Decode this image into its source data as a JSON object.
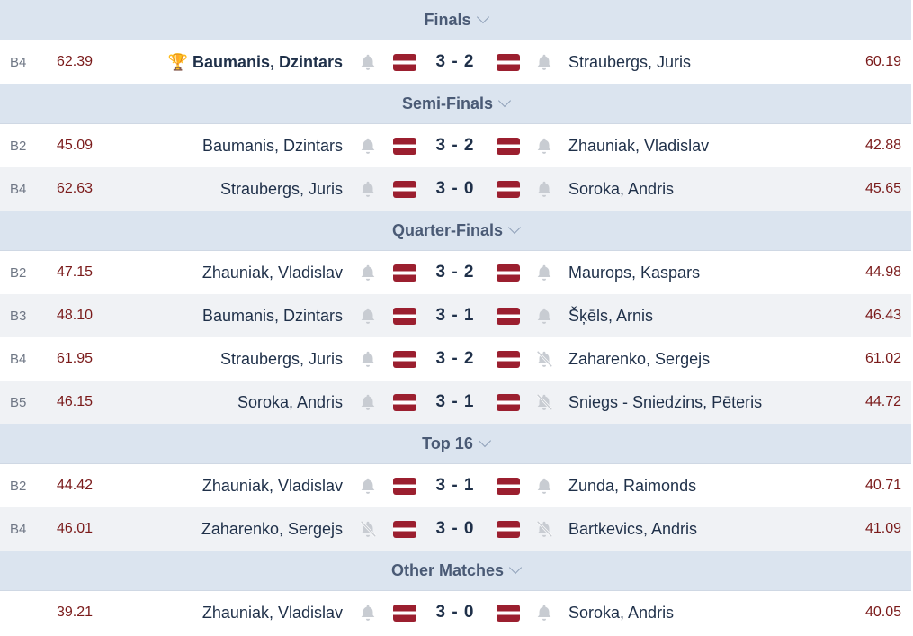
{
  "colors": {
    "header_bg": "#dbe4ef",
    "alt_row": "#f0f2f5",
    "average": "#7a1a1a",
    "flag_red": "#9b1f2f",
    "trophy": "#e0a800"
  },
  "sections": [
    {
      "title": "Finals",
      "matches": [
        {
          "round": "B4",
          "avg1": "62.39",
          "p1": "Baumanis, Dzintars",
          "winner": true,
          "score": "3 - 2",
          "p2": "Straubergs, Juris",
          "avg2": "60.19",
          "muted1": false,
          "muted2": false
        }
      ]
    },
    {
      "title": "Semi-Finals",
      "matches": [
        {
          "round": "B2",
          "avg1": "45.09",
          "p1": "Baumanis, Dzintars",
          "score": "3 - 2",
          "p2": "Zhauniak, Vladislav",
          "avg2": "42.88",
          "muted1": false,
          "muted2": false
        },
        {
          "round": "B4",
          "avg1": "62.63",
          "p1": "Straubergs, Juris",
          "score": "3 - 0",
          "p2": "Soroka, Andris",
          "avg2": "45.65",
          "muted1": false,
          "muted2": false
        }
      ]
    },
    {
      "title": "Quarter-Finals",
      "matches": [
        {
          "round": "B2",
          "avg1": "47.15",
          "p1": "Zhauniak, Vladislav",
          "score": "3 - 2",
          "p2": "Maurops, Kaspars",
          "avg2": "44.98",
          "muted1": false,
          "muted2": false
        },
        {
          "round": "B3",
          "avg1": "48.10",
          "p1": "Baumanis, Dzintars",
          "score": "3 - 1",
          "p2": "Šķēls, Arnis",
          "avg2": "46.43",
          "muted1": false,
          "muted2": false
        },
        {
          "round": "B4",
          "avg1": "61.95",
          "p1": "Straubergs, Juris",
          "score": "3 - 2",
          "p2": "Zaharenko, Sergejs",
          "avg2": "61.02",
          "muted1": false,
          "muted2": true
        },
        {
          "round": "B5",
          "avg1": "46.15",
          "p1": "Soroka, Andris",
          "score": "3 - 1",
          "p2": "Sniegs - Sniedzins, Pēteris",
          "avg2": "44.72",
          "muted1": false,
          "muted2": true
        }
      ]
    },
    {
      "title": "Top 16",
      "matches": [
        {
          "round": "B2",
          "avg1": "44.42",
          "p1": "Zhauniak, Vladislav",
          "score": "3 - 1",
          "p2": "Zunda, Raimonds",
          "avg2": "40.71",
          "muted1": false,
          "muted2": false
        },
        {
          "round": "B4",
          "avg1": "46.01",
          "p1": "Zaharenko, Sergejs",
          "score": "3 - 0",
          "p2": "Bartkevics, Andris",
          "avg2": "41.09",
          "muted1": true,
          "muted2": true
        }
      ]
    },
    {
      "title": "Other Matches",
      "matches": [
        {
          "round": "",
          "avg1": "39.21",
          "p1": "Zhauniak, Vladislav",
          "score": "3 - 0",
          "p2": "Soroka, Andris",
          "avg2": "40.05",
          "muted1": false,
          "muted2": false
        }
      ]
    }
  ]
}
